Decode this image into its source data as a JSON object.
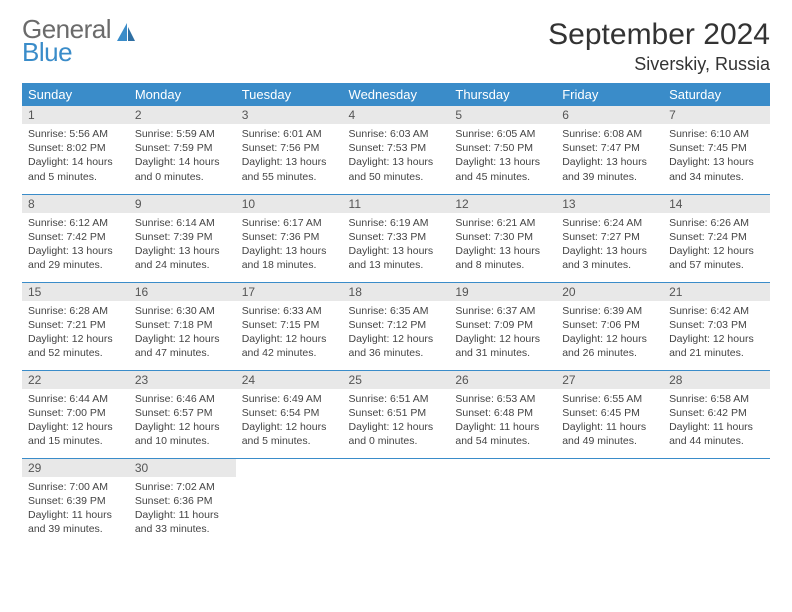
{
  "brand": {
    "text1": "General",
    "text2": "Blue"
  },
  "title": "September 2024",
  "location": "Siverskiy, Russia",
  "colors": {
    "header_bg": "#3a8cc9",
    "daynum_bg": "#e8e8e8",
    "border": "#3a8cc9"
  },
  "weekdays": [
    "Sunday",
    "Monday",
    "Tuesday",
    "Wednesday",
    "Thursday",
    "Friday",
    "Saturday"
  ],
  "days": [
    {
      "n": "1",
      "sr": "5:56 AM",
      "ss": "8:02 PM",
      "dl": "14 hours and 5 minutes."
    },
    {
      "n": "2",
      "sr": "5:59 AM",
      "ss": "7:59 PM",
      "dl": "14 hours and 0 minutes."
    },
    {
      "n": "3",
      "sr": "6:01 AM",
      "ss": "7:56 PM",
      "dl": "13 hours and 55 minutes."
    },
    {
      "n": "4",
      "sr": "6:03 AM",
      "ss": "7:53 PM",
      "dl": "13 hours and 50 minutes."
    },
    {
      "n": "5",
      "sr": "6:05 AM",
      "ss": "7:50 PM",
      "dl": "13 hours and 45 minutes."
    },
    {
      "n": "6",
      "sr": "6:08 AM",
      "ss": "7:47 PM",
      "dl": "13 hours and 39 minutes."
    },
    {
      "n": "7",
      "sr": "6:10 AM",
      "ss": "7:45 PM",
      "dl": "13 hours and 34 minutes."
    },
    {
      "n": "8",
      "sr": "6:12 AM",
      "ss": "7:42 PM",
      "dl": "13 hours and 29 minutes."
    },
    {
      "n": "9",
      "sr": "6:14 AM",
      "ss": "7:39 PM",
      "dl": "13 hours and 24 minutes."
    },
    {
      "n": "10",
      "sr": "6:17 AM",
      "ss": "7:36 PM",
      "dl": "13 hours and 18 minutes."
    },
    {
      "n": "11",
      "sr": "6:19 AM",
      "ss": "7:33 PM",
      "dl": "13 hours and 13 minutes."
    },
    {
      "n": "12",
      "sr": "6:21 AM",
      "ss": "7:30 PM",
      "dl": "13 hours and 8 minutes."
    },
    {
      "n": "13",
      "sr": "6:24 AM",
      "ss": "7:27 PM",
      "dl": "13 hours and 3 minutes."
    },
    {
      "n": "14",
      "sr": "6:26 AM",
      "ss": "7:24 PM",
      "dl": "12 hours and 57 minutes."
    },
    {
      "n": "15",
      "sr": "6:28 AM",
      "ss": "7:21 PM",
      "dl": "12 hours and 52 minutes."
    },
    {
      "n": "16",
      "sr": "6:30 AM",
      "ss": "7:18 PM",
      "dl": "12 hours and 47 minutes."
    },
    {
      "n": "17",
      "sr": "6:33 AM",
      "ss": "7:15 PM",
      "dl": "12 hours and 42 minutes."
    },
    {
      "n": "18",
      "sr": "6:35 AM",
      "ss": "7:12 PM",
      "dl": "12 hours and 36 minutes."
    },
    {
      "n": "19",
      "sr": "6:37 AM",
      "ss": "7:09 PM",
      "dl": "12 hours and 31 minutes."
    },
    {
      "n": "20",
      "sr": "6:39 AM",
      "ss": "7:06 PM",
      "dl": "12 hours and 26 minutes."
    },
    {
      "n": "21",
      "sr": "6:42 AM",
      "ss": "7:03 PM",
      "dl": "12 hours and 21 minutes."
    },
    {
      "n": "22",
      "sr": "6:44 AM",
      "ss": "7:00 PM",
      "dl": "12 hours and 15 minutes."
    },
    {
      "n": "23",
      "sr": "6:46 AM",
      "ss": "6:57 PM",
      "dl": "12 hours and 10 minutes."
    },
    {
      "n": "24",
      "sr": "6:49 AM",
      "ss": "6:54 PM",
      "dl": "12 hours and 5 minutes."
    },
    {
      "n": "25",
      "sr": "6:51 AM",
      "ss": "6:51 PM",
      "dl": "12 hours and 0 minutes."
    },
    {
      "n": "26",
      "sr": "6:53 AM",
      "ss": "6:48 PM",
      "dl": "11 hours and 54 minutes."
    },
    {
      "n": "27",
      "sr": "6:55 AM",
      "ss": "6:45 PM",
      "dl": "11 hours and 49 minutes."
    },
    {
      "n": "28",
      "sr": "6:58 AM",
      "ss": "6:42 PM",
      "dl": "11 hours and 44 minutes."
    },
    {
      "n": "29",
      "sr": "7:00 AM",
      "ss": "6:39 PM",
      "dl": "11 hours and 39 minutes."
    },
    {
      "n": "30",
      "sr": "7:02 AM",
      "ss": "6:36 PM",
      "dl": "11 hours and 33 minutes."
    }
  ]
}
